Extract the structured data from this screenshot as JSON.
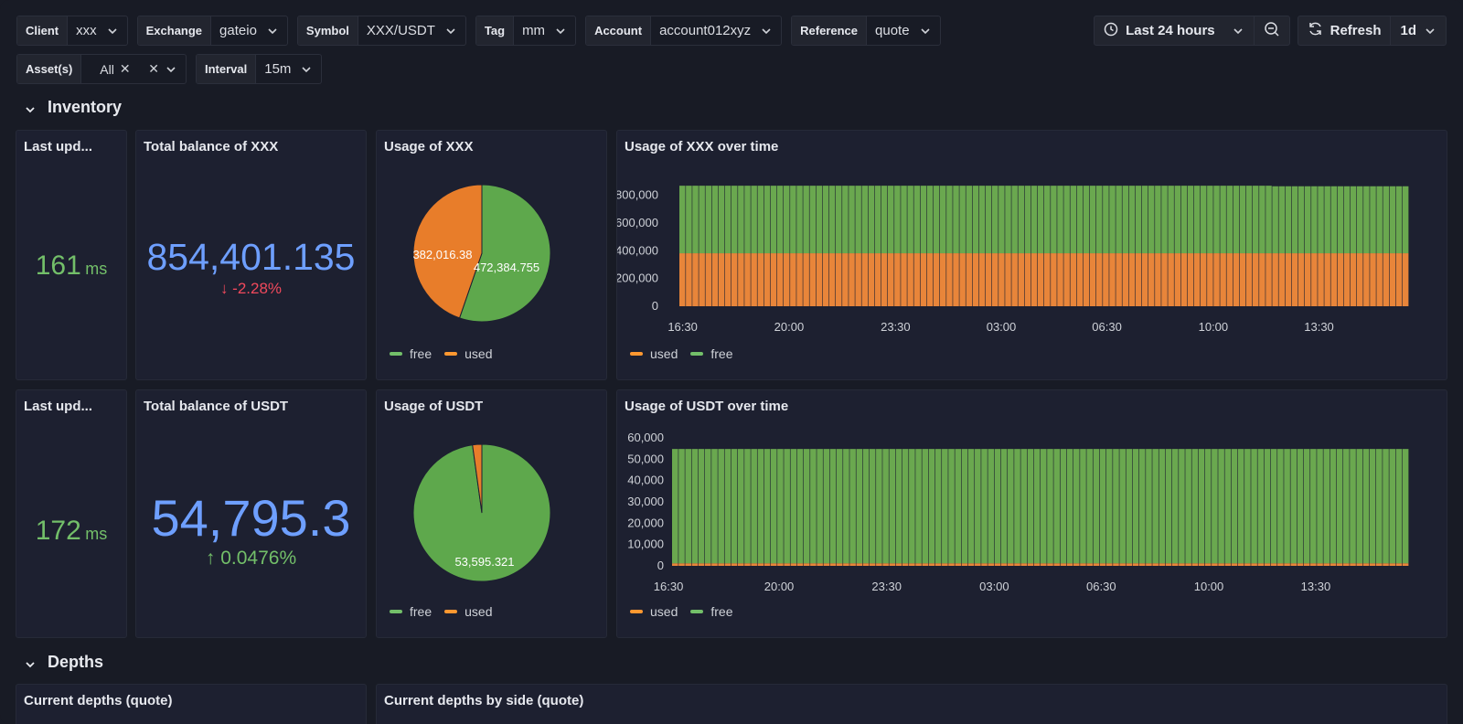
{
  "colors": {
    "green": "#73bf69",
    "orange": "#ff9830",
    "blue": "#6e9fff",
    "red": "#f2495c",
    "pie_green": "#5ea84c",
    "pie_orange": "#e87d2a"
  },
  "vars": [
    {
      "label": "Client",
      "value": "xxx"
    },
    {
      "label": "Exchange",
      "value": "gateio"
    },
    {
      "label": "Symbol",
      "value": "XXX/USDT"
    },
    {
      "label": "Tag",
      "value": "mm"
    },
    {
      "label": "Account",
      "value": "account012xyz"
    },
    {
      "label": "Reference",
      "value": "quote"
    }
  ],
  "vars2": {
    "assets_label": "Asset(s)",
    "assets_value": "All",
    "interval_label": "Interval",
    "interval_value": "15m"
  },
  "controls": {
    "time_range": "Last 24 hours",
    "refresh": "Refresh",
    "refresh_interval": "1d"
  },
  "rows": {
    "inventory": "Inventory",
    "depths": "Depths"
  },
  "panels": {
    "xxx_last_update": {
      "title": "Last upd...",
      "value": "161",
      "unit": "ms"
    },
    "xxx_total": {
      "title": "Total balance of XXX",
      "value": "854,401.135",
      "delta": "-2.28%",
      "delta_dir": "down"
    },
    "xxx_usage": {
      "title": "Usage of XXX",
      "legend_free": "free",
      "legend_used": "used"
    },
    "xxx_over_time": {
      "title": "Usage of XXX over time",
      "legend_used": "used",
      "legend_free": "free"
    },
    "usdt_last_update": {
      "title": "Last upd...",
      "value": "172",
      "unit": "ms"
    },
    "usdt_total": {
      "title": "Total balance of USDT",
      "value": "54,795.3",
      "delta": "0.0476%",
      "delta_dir": "up"
    },
    "usdt_usage": {
      "title": "Usage of USDT",
      "legend_free": "free",
      "legend_used": "used"
    },
    "usdt_over_time": {
      "title": "Usage of USDT over time",
      "legend_used": "used",
      "legend_free": "free"
    },
    "depths_quote": {
      "title": "Current depths (quote)"
    },
    "depths_side": {
      "title": "Current depths by side (quote)"
    }
  },
  "chart_data": [
    {
      "type": "pie",
      "id": "xxx_pie",
      "slices": [
        {
          "name": "free",
          "value": 472384.755,
          "label": "472,384.755"
        },
        {
          "name": "used",
          "value": 382016.38,
          "label": "382,016.38"
        }
      ]
    },
    {
      "type": "bar",
      "id": "xxx_time",
      "stacked": true,
      "x_ticks": [
        "16:30",
        "20:00",
        "23:30",
        "03:00",
        "06:30",
        "10:00",
        "13:30"
      ],
      "y_ticks": [
        "800,000",
        "600,000",
        "400,000",
        "200,000",
        "0"
      ],
      "ylim": [
        0,
        870000
      ],
      "series": [
        {
          "name": "used",
          "values_approx": 382000,
          "color": "#ff9830"
        },
        {
          "name": "free",
          "values_approx": 487000,
          "color": "#73bf69"
        }
      ]
    },
    {
      "type": "pie",
      "id": "usdt_pie",
      "slices": [
        {
          "name": "free",
          "value": 53595.321,
          "label": "53,595.321"
        },
        {
          "name": "used",
          "value": 1200
        }
      ]
    },
    {
      "type": "bar",
      "id": "usdt_time",
      "stacked": true,
      "x_ticks": [
        "16:30",
        "20:00",
        "23:30",
        "03:00",
        "06:30",
        "10:00",
        "13:30"
      ],
      "y_ticks": [
        "60,000",
        "50,000",
        "40,000",
        "30,000",
        "20,000",
        "10,000",
        "0"
      ],
      "ylim": [
        0,
        60000
      ],
      "series": [
        {
          "name": "used",
          "values_approx": 1200,
          "color": "#ff9830"
        },
        {
          "name": "free",
          "values_approx": 53595,
          "color": "#73bf69"
        }
      ]
    }
  ]
}
